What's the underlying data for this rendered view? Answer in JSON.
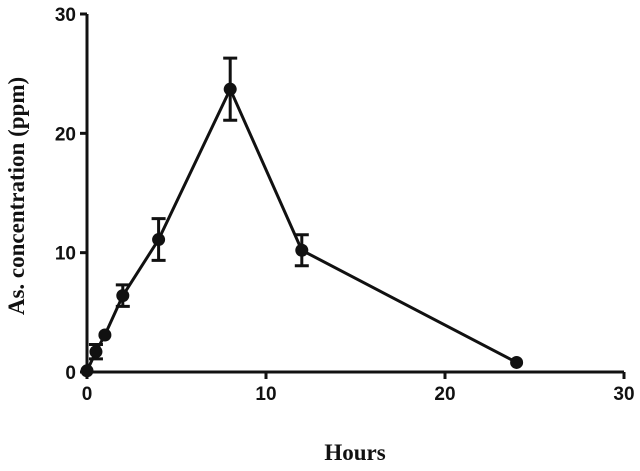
{
  "chart_data": {
    "type": "line",
    "xlabel": "Hours",
    "ylabel": "As. concentration (ppm)",
    "x": [
      0,
      0.5,
      1,
      2,
      4,
      8,
      12,
      24
    ],
    "series": [
      {
        "color": "#111111",
        "values": [
          0.1,
          1.7,
          3.1,
          6.4,
          11.1,
          23.7,
          10.2,
          0.8
        ],
        "errors": [
          null,
          0.6,
          null,
          0.9,
          1.75,
          2.6,
          1.3,
          null
        ]
      }
    ],
    "xlim": [
      0,
      30
    ],
    "xticks": [
      0,
      10,
      20,
      30
    ],
    "ylim": [
      0,
      30
    ],
    "yticks": [
      0,
      10,
      20,
      30
    ],
    "grid": false
  }
}
